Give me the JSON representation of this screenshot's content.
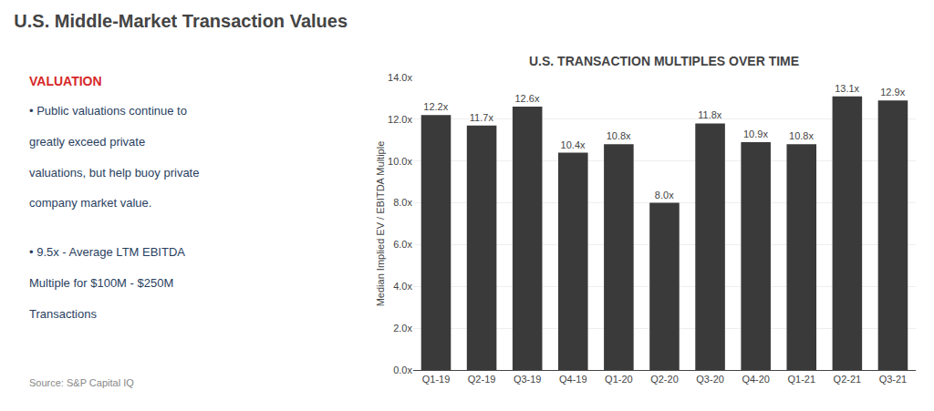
{
  "chart_data": {
    "type": "bar",
    "title": "U.S. Middle-Market Transaction Values",
    "subtitle": "U.S. TRANSACTION MULTIPLES OVER TIME",
    "ylabel": "Median Implied EV / EBITDA Multiple",
    "categories": [
      "Q1-19",
      "Q2-19",
      "Q3-19",
      "Q4-19",
      "Q1-20",
      "Q2-20",
      "Q3-20",
      "Q4-20",
      "Q1-21",
      "Q2-21",
      "Q3-21"
    ],
    "values": [
      12.2,
      11.7,
      12.6,
      10.4,
      10.8,
      8.0,
      11.8,
      10.9,
      10.8,
      13.1,
      12.9
    ],
    "value_labels": [
      "12.2x",
      "11.7x",
      "12.6x",
      "10.4x",
      "10.8x",
      "8.0x",
      "11.8x",
      "10.9x",
      "10.8x",
      "13.1x",
      "12.9x"
    ],
    "data_labels": true,
    "color": "#3a3a3a",
    "ylim": [
      0,
      14.0
    ],
    "yticks": [
      {
        "value": 0.0,
        "label": "0.0x"
      },
      {
        "value": 2.0,
        "label": "2.0x"
      },
      {
        "value": 4.0,
        "label": "4.0x"
      },
      {
        "value": 6.0,
        "label": "6.0x"
      },
      {
        "value": 8.0,
        "label": "8.0x"
      },
      {
        "value": 10.0,
        "label": "10.0x"
      },
      {
        "value": 12.0,
        "label": "12.0x"
      },
      {
        "value": 14.0,
        "label": "14.0x"
      }
    ],
    "grid": true,
    "annotations": [
      "VALUATION",
      "• Public valuations continue to",
      "greatly exceed private",
      "valuations, but help buoy private",
      "company market value.",
      "• 9.5x - Average LTM EBITDA",
      "Multiple for $100M - $250M",
      "Transactions",
      "Source: S&P Capital IQ"
    ]
  }
}
